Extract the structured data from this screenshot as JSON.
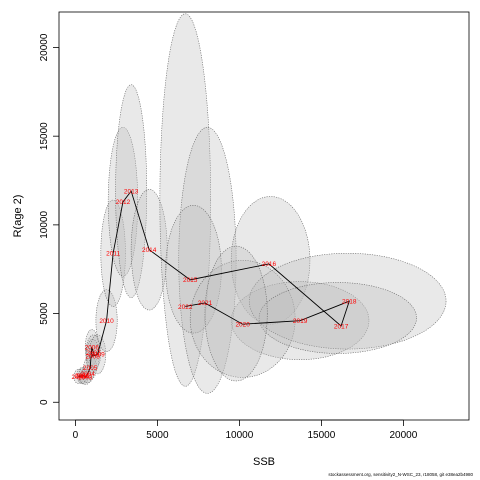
{
  "chart_data": {
    "type": "scatter",
    "title": "",
    "xlabel": "SSB",
    "ylabel": "R(age 2)",
    "xlim": [
      -1000,
      24000
    ],
    "ylim": [
      -1000,
      22000
    ],
    "xticks": [
      0,
      5000,
      10000,
      15000,
      20000
    ],
    "yticks": [
      0,
      5000,
      10000,
      15000,
      20000
    ],
    "grid": false,
    "series": [
      {
        "points": [
          {
            "year": "2000",
            "x": 200,
            "y": 1450
          },
          {
            "year": "2001",
            "x": 400,
            "y": 1500
          },
          {
            "year": "2002",
            "x": 500,
            "y": 1500
          },
          {
            "year": "2003",
            "x": 600,
            "y": 1400
          },
          {
            "year": "2004",
            "x": 750,
            "y": 1600
          },
          {
            "year": "2005",
            "x": 900,
            "y": 1950
          },
          {
            "year": "2006",
            "x": 1000,
            "y": 3100
          },
          {
            "year": "2007",
            "x": 1100,
            "y": 2800
          },
          {
            "year": "2008",
            "x": 1050,
            "y": 2600
          },
          {
            "year": "2009",
            "x": 1350,
            "y": 2700
          },
          {
            "year": "2010",
            "x": 1900,
            "y": 4600
          },
          {
            "year": "2011",
            "x": 2300,
            "y": 8400
          },
          {
            "year": "2012",
            "x": 2900,
            "y": 11300
          },
          {
            "year": "2013",
            "x": 3400,
            "y": 11900
          },
          {
            "year": "2014",
            "x": 4500,
            "y": 8600
          },
          {
            "year": "2015",
            "x": 7000,
            "y": 6900
          },
          {
            "year": "2016",
            "x": 11800,
            "y": 7800
          },
          {
            "year": "2017",
            "x": 16200,
            "y": 4300
          },
          {
            "year": "2018",
            "x": 16700,
            "y": 5700
          },
          {
            "year": "2019",
            "x": 13700,
            "y": 4600
          },
          {
            "year": "2020",
            "x": 10200,
            "y": 4400
          },
          {
            "year": "2021",
            "x": 7900,
            "y": 5600
          },
          {
            "year": "2022",
            "x": 6700,
            "y": 5400
          }
        ]
      }
    ],
    "ellipses": [
      {
        "x": 200,
        "y": 1450,
        "rx": 300,
        "ry": 400
      },
      {
        "x": 400,
        "y": 1500,
        "rx": 300,
        "ry": 450
      },
      {
        "x": 500,
        "y": 1500,
        "rx": 300,
        "ry": 450
      },
      {
        "x": 600,
        "y": 1400,
        "rx": 350,
        "ry": 400
      },
      {
        "x": 750,
        "y": 1600,
        "rx": 350,
        "ry": 500
      },
      {
        "x": 900,
        "y": 1950,
        "rx": 400,
        "ry": 650
      },
      {
        "x": 1000,
        "y": 3100,
        "rx": 400,
        "ry": 1000
      },
      {
        "x": 1100,
        "y": 2800,
        "rx": 450,
        "ry": 1000
      },
      {
        "x": 1050,
        "y": 2600,
        "rx": 400,
        "ry": 950
      },
      {
        "x": 1350,
        "y": 2700,
        "rx": 500,
        "ry": 1100
      },
      {
        "x": 1900,
        "y": 4600,
        "rx": 650,
        "ry": 1750
      },
      {
        "x": 2300,
        "y": 8400,
        "rx": 750,
        "ry": 3000
      },
      {
        "x": 2900,
        "y": 11300,
        "rx": 900,
        "ry": 4200
      },
      {
        "x": 3400,
        "y": 11900,
        "rx": 950,
        "ry": 6000
      },
      {
        "x": 4500,
        "y": 8600,
        "rx": 1100,
        "ry": 3400
      },
      {
        "x": 6700,
        "y": 11400,
        "rx": 1550,
        "ry": 10500
      },
      {
        "x": 8050,
        "y": 8000,
        "rx": 1750,
        "ry": 7500
      },
      {
        "x": 7200,
        "y": 7500,
        "rx": 1700,
        "ry": 3600
      },
      {
        "x": 11900,
        "y": 8000,
        "rx": 2400,
        "ry": 3600
      },
      {
        "x": 13700,
        "y": 4600,
        "rx": 4200,
        "ry": 2200
      },
      {
        "x": 10200,
        "y": 4700,
        "rx": 3200,
        "ry": 3300
      },
      {
        "x": 16600,
        "y": 5700,
        "rx": 6000,
        "ry": 2700
      },
      {
        "x": 16000,
        "y": 4750,
        "rx": 4800,
        "ry": 2000
      },
      {
        "x": 9800,
        "y": 5000,
        "rx": 1900,
        "ry": 3800
      }
    ],
    "colors": {
      "ellipse_fill": "#bdbdbd",
      "ellipse_stroke": "#666666",
      "line": "#000000",
      "label": "#ff0000"
    },
    "caption": "stockassessment.org, sensitivity2_N-WSC_23, r18058, git e38ea2b4980"
  }
}
